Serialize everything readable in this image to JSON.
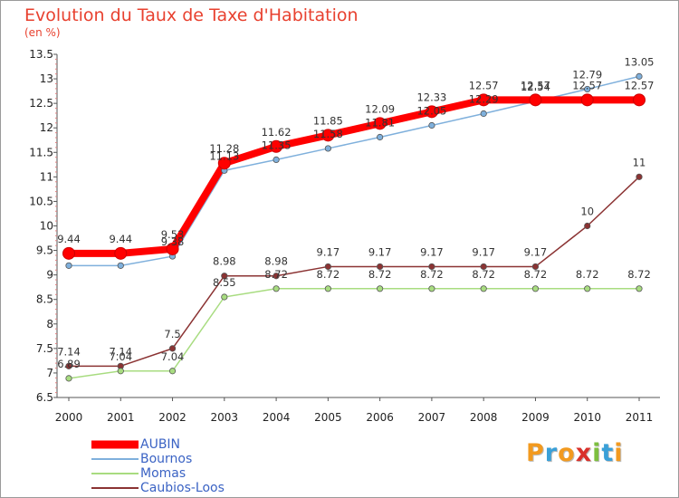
{
  "title": "Evolution du Taux de Taxe d'Habitation",
  "subtitle": "(en %)",
  "logo": {
    "text": "Proxiti",
    "letters": [
      {
        "ch": "P",
        "color": "#f29a1f"
      },
      {
        "ch": "r",
        "color": "#3aa0d8"
      },
      {
        "ch": "o",
        "color": "#f29a1f"
      },
      {
        "ch": "x",
        "color": "#d9312b"
      },
      {
        "ch": "i",
        "color": "#7dbf3f"
      },
      {
        "ch": "t",
        "color": "#3aa0d8"
      },
      {
        "ch": "i",
        "color": "#f29a1f"
      }
    ]
  },
  "chart_data": {
    "type": "line",
    "title": "Evolution du Taux de Taxe d'Habitation",
    "ylabel": "(en %)",
    "xlabel": "",
    "x": [
      "2000",
      "2001",
      "2002",
      "2003",
      "2004",
      "2005",
      "2006",
      "2007",
      "2008",
      "2009",
      "2010",
      "2011"
    ],
    "ylim": [
      6.5,
      13.5
    ],
    "yticks": [
      6.5,
      7,
      7.5,
      8,
      8.5,
      9,
      9.5,
      10,
      10.5,
      11,
      11.5,
      12,
      12.5,
      13,
      13.5
    ],
    "ytick_labels": [
      "6.5",
      "7",
      "7.5",
      "8",
      "8.5",
      "9",
      "9.5",
      "10",
      "10.5",
      "11",
      "11.5",
      "12",
      "12.5",
      "13",
      "13.5"
    ],
    "grid": false,
    "legend": "bottom-left",
    "series": [
      {
        "name": "AUBIN",
        "color": "#ff0000",
        "values": [
          9.44,
          9.44,
          9.53,
          11.28,
          11.62,
          11.85,
          12.09,
          12.33,
          12.57,
          12.57,
          12.57,
          12.57
        ],
        "labels": [
          "9.44",
          "9.44",
          "9.53",
          "11.28",
          "11.62",
          "11.85",
          "12.09",
          "12.33",
          "12.57",
          "12.57",
          "12.57",
          "12.57"
        ]
      },
      {
        "name": "Bournos",
        "color": "#7fb0dc",
        "values": [
          9.19,
          9.19,
          9.38,
          11.13,
          11.35,
          11.58,
          11.81,
          12.05,
          12.29,
          12.54,
          12.79,
          13.05
        ],
        "labels": [
          "",
          "",
          "9.38",
          "11.13",
          "11.35",
          "11.58",
          "11.81",
          "12.05",
          "12.29",
          "12.54",
          "12.79",
          "13.05"
        ]
      },
      {
        "name": "Momas",
        "color": "#a8dc80",
        "values": [
          6.89,
          7.04,
          7.04,
          8.55,
          8.72,
          8.72,
          8.72,
          8.72,
          8.72,
          8.72,
          8.72,
          8.72
        ],
        "labels": [
          "6.89",
          "7.04",
          "7.04",
          "8.55",
          "8.72",
          "8.72",
          "8.72",
          "8.72",
          "8.72",
          "8.72",
          "8.72",
          "8.72"
        ]
      },
      {
        "name": "Caubios-Loos",
        "color": "#8b3333",
        "values": [
          7.14,
          7.14,
          7.5,
          8.98,
          8.98,
          9.17,
          9.17,
          9.17,
          9.17,
          9.17,
          10,
          11
        ],
        "labels": [
          "7.14",
          "7.14",
          "7.5",
          "8.98",
          "8.98",
          "9.17",
          "9.17",
          "9.17",
          "9.17",
          "9.17",
          "10",
          "11"
        ]
      }
    ]
  }
}
